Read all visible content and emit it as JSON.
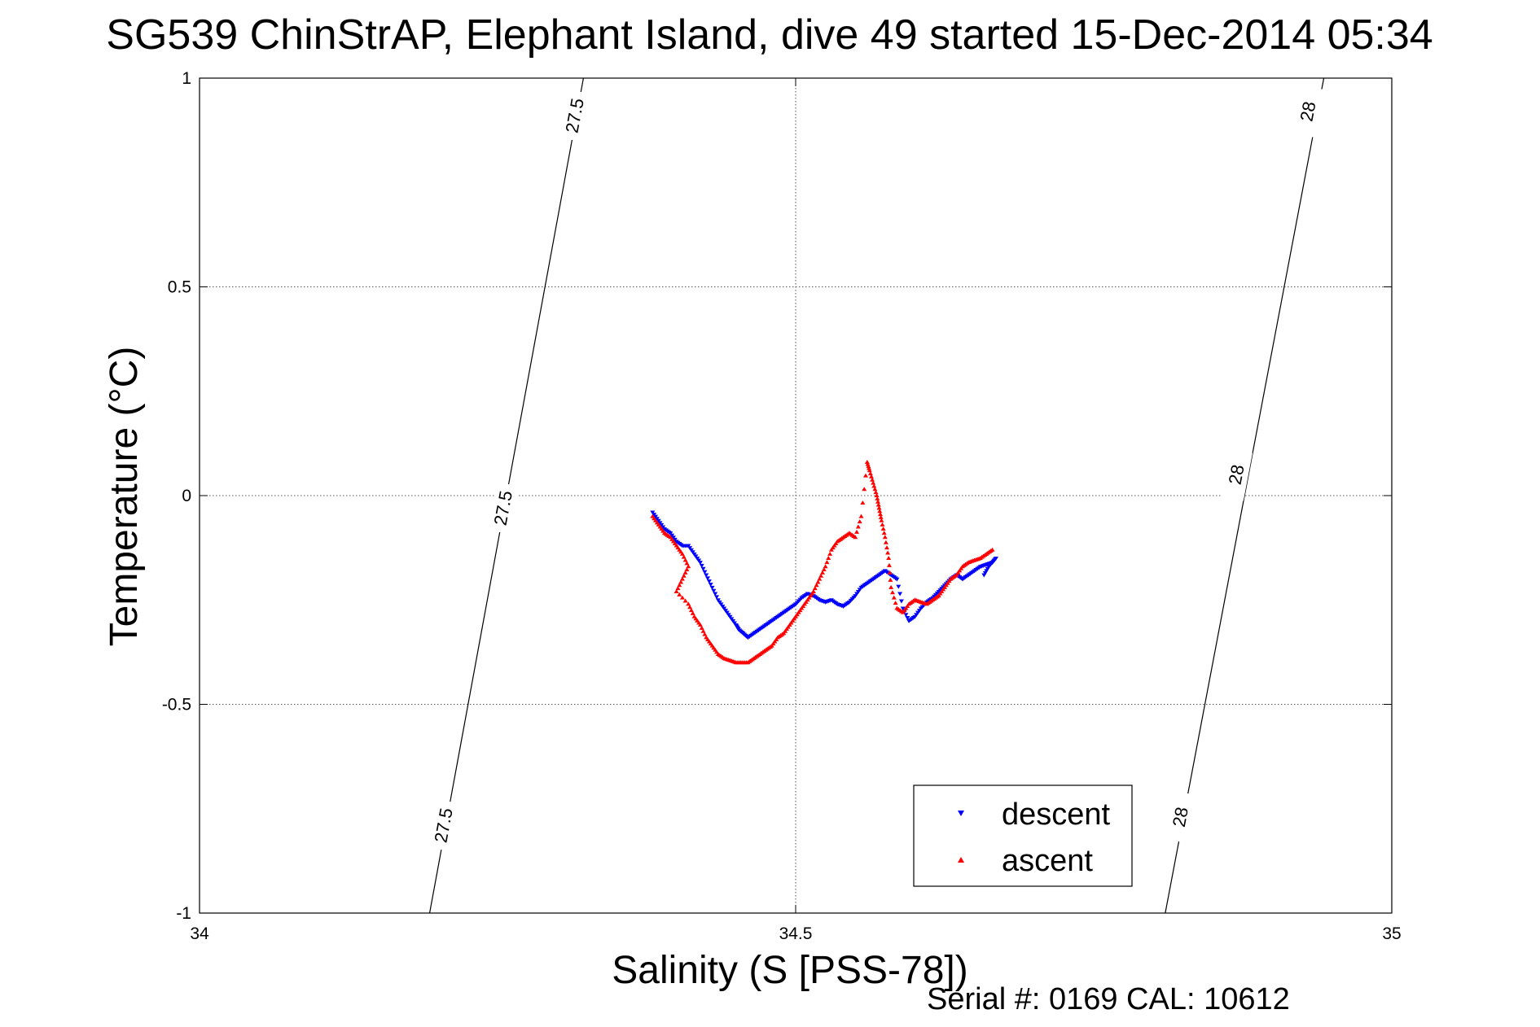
{
  "chart_data": {
    "type": "scatter",
    "title": "SG539 ChinStrAP, Elephant Island, dive 49 started 15-Dec-2014 05:34",
    "xlabel": "Salinity (S [PSS-78])",
    "ylabel": "Temperature (°C)",
    "xlim": [
      34,
      35
    ],
    "ylim": [
      -1,
      1
    ],
    "xticks": [
      34,
      34.5,
      35
    ],
    "xtick_labels": [
      "34",
      "34.5",
      "35"
    ],
    "yticks": [
      -1,
      -0.5,
      0,
      0.5,
      1
    ],
    "ytick_labels": [
      "-1",
      "-0.5",
      "0",
      "0.5",
      "1"
    ],
    "grid": true,
    "legend_position": "bottom-right",
    "isopycnals": [
      {
        "label": "27.5",
        "line": [
          [
            34.193,
            -1
          ],
          [
            34.322,
            1
          ]
        ],
        "label_positions": [
          [
            34.205,
            -0.79
          ],
          [
            34.255,
            -0.03
          ],
          [
            34.315,
            0.91
          ]
        ]
      },
      {
        "label": "28",
        "line": [
          [
            34.81,
            -1
          ],
          [
            34.943,
            1
          ]
        ],
        "label_positions": [
          [
            34.823,
            -0.77
          ],
          [
            34.87,
            0.05
          ],
          [
            34.93,
            0.92
          ]
        ]
      }
    ],
    "series": [
      {
        "name": "descent",
        "color": "#0000ff",
        "marker": "triangle-down",
        "x": [
          34.38,
          34.385,
          34.39,
          34.395,
          34.4,
          34.405,
          34.41,
          34.415,
          34.42,
          34.425,
          34.43,
          34.435,
          34.44,
          34.445,
          34.45,
          34.452,
          34.456,
          34.46,
          34.465,
          34.47,
          34.475,
          34.48,
          34.485,
          34.49,
          34.495,
          34.5,
          34.505,
          34.51,
          34.515,
          34.52,
          34.525,
          34.53,
          34.535,
          34.54,
          34.545,
          34.55,
          34.555,
          34.56,
          34.565,
          34.57,
          34.575,
          34.58,
          34.585,
          34.59,
          34.595,
          34.6,
          34.605,
          34.61,
          34.615,
          34.62,
          34.625,
          34.63,
          34.635,
          34.64,
          34.645,
          34.65,
          34.655,
          34.66,
          34.665,
          34.668,
          34.662,
          34.658
        ],
        "y": [
          -0.04,
          -0.06,
          -0.08,
          -0.09,
          -0.11,
          -0.12,
          -0.12,
          -0.14,
          -0.16,
          -0.19,
          -0.22,
          -0.25,
          -0.27,
          -0.29,
          -0.31,
          -0.32,
          -0.33,
          -0.34,
          -0.33,
          -0.32,
          -0.31,
          -0.3,
          -0.29,
          -0.28,
          -0.27,
          -0.26,
          -0.245,
          -0.235,
          -0.24,
          -0.25,
          -0.255,
          -0.25,
          -0.26,
          -0.265,
          -0.255,
          -0.24,
          -0.22,
          -0.21,
          -0.2,
          -0.19,
          -0.18,
          -0.19,
          -0.2,
          -0.27,
          -0.3,
          -0.29,
          -0.27,
          -0.255,
          -0.245,
          -0.23,
          -0.215,
          -0.2,
          -0.19,
          -0.2,
          -0.19,
          -0.18,
          -0.17,
          -0.165,
          -0.16,
          -0.15,
          -0.17,
          -0.19
        ]
      },
      {
        "name": "ascent",
        "color": "#ff0000",
        "marker": "triangle-up",
        "x": [
          34.38,
          34.385,
          34.39,
          34.395,
          34.4,
          34.405,
          34.41,
          34.405,
          34.4,
          34.41,
          34.415,
          34.42,
          34.425,
          34.43,
          34.435,
          34.44,
          34.445,
          34.45,
          34.455,
          34.46,
          34.465,
          34.47,
          34.475,
          34.48,
          34.485,
          34.49,
          34.495,
          34.5,
          34.505,
          34.51,
          34.515,
          34.52,
          34.525,
          34.53,
          34.535,
          34.54,
          34.545,
          34.55,
          34.555,
          34.56,
          34.562,
          34.565,
          34.568,
          34.57,
          34.572,
          34.575,
          34.578,
          34.58,
          34.585,
          34.59,
          34.595,
          34.6,
          34.605,
          34.61,
          34.615,
          34.62,
          34.625,
          34.63,
          34.635,
          34.64,
          34.645,
          34.65,
          34.655,
          34.66,
          34.665
        ],
        "y": [
          -0.05,
          -0.07,
          -0.09,
          -0.1,
          -0.12,
          -0.14,
          -0.17,
          -0.2,
          -0.23,
          -0.26,
          -0.29,
          -0.31,
          -0.34,
          -0.36,
          -0.38,
          -0.39,
          -0.395,
          -0.4,
          -0.4,
          -0.4,
          -0.39,
          -0.38,
          -0.37,
          -0.36,
          -0.34,
          -0.33,
          -0.31,
          -0.29,
          -0.27,
          -0.25,
          -0.23,
          -0.2,
          -0.17,
          -0.13,
          -0.11,
          -0.1,
          -0.09,
          -0.1,
          -0.05,
          0.08,
          0.06,
          0.03,
          0.0,
          -0.03,
          -0.06,
          -0.1,
          -0.15,
          -0.22,
          -0.27,
          -0.28,
          -0.26,
          -0.25,
          -0.255,
          -0.26,
          -0.25,
          -0.24,
          -0.22,
          -0.2,
          -0.19,
          -0.17,
          -0.16,
          -0.155,
          -0.15,
          -0.14,
          -0.13
        ]
      }
    ]
  },
  "footer": {
    "serial_text": "Serial #: 0169 CAL: 10612"
  }
}
